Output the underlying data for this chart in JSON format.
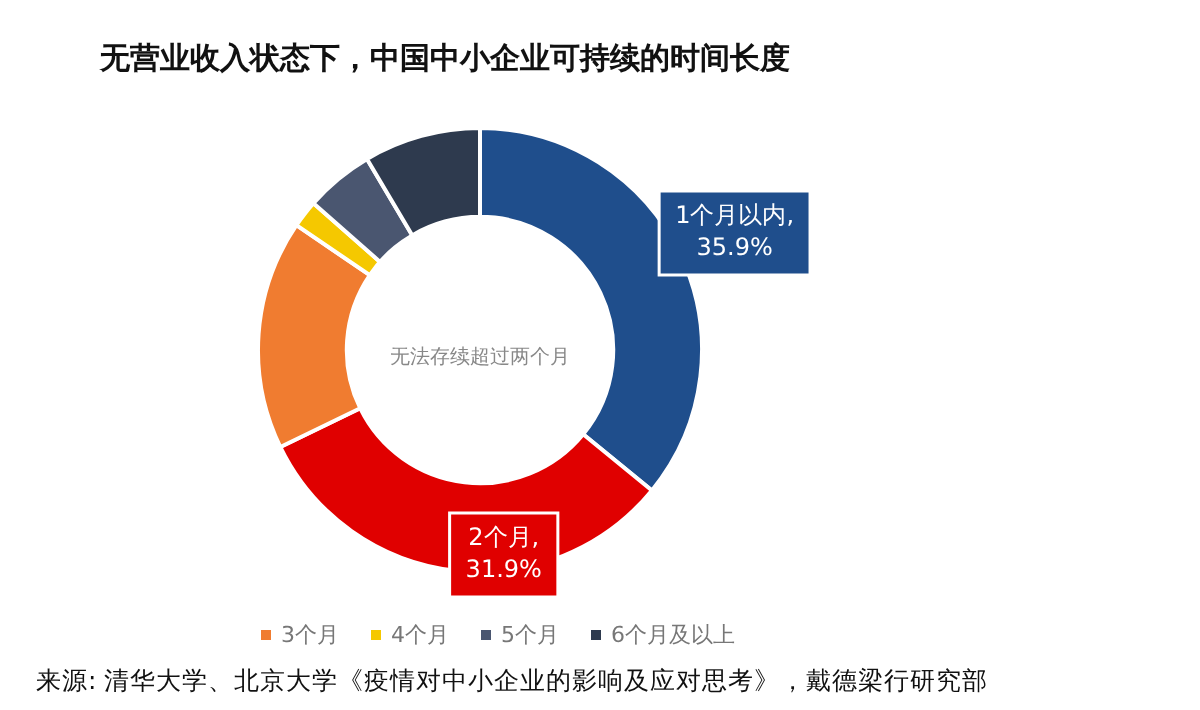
{
  "chart_data": {
    "type": "donut",
    "title": "无营业收入状态下，中国中小企业可持续的时间长度",
    "categories": [
      "1个月以内",
      "2个月",
      "3个月",
      "4个月",
      "5个月",
      "6个月及以上"
    ],
    "values": [
      35.9,
      31.9,
      16.7,
      2,
      5,
      8.5
    ],
    "colors": [
      "#1f4e8c",
      "#e00000",
      "#f07c30",
      "#f5c800",
      "#4a5670",
      "#2e3a4e"
    ],
    "value_labels": [
      ", 35.9%",
      ", 31.9%",
      null,
      null,
      null,
      null
    ],
    "legend": "bottom",
    "annotations": [
      "无法存续超过两个月",
      "来源: 清华大学、北京大学《疫情对中小企业的影响及应对思考》，戴德梁行研究部"
    ]
  }
}
